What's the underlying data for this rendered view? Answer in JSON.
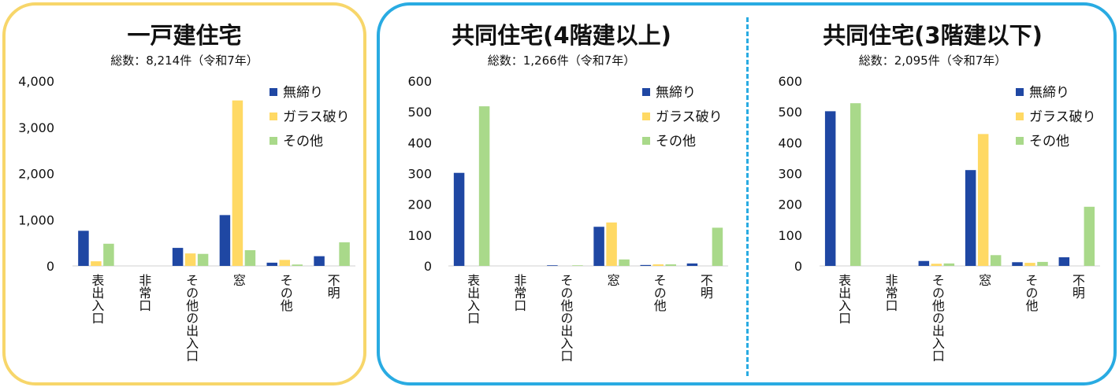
{
  "colors": {
    "no_lock": "#1f47a3",
    "glass_break": "#ffd964",
    "other": "#a9d98a",
    "panel_yellow": "#f7d66a",
    "panel_blue": "#29abe2"
  },
  "chart_data": [
    {
      "type": "bar",
      "title": "一戸建住宅",
      "subtitle": "総数：8,214件（令和7年）",
      "categories": [
        "表出入口",
        "非常口",
        "その他の出入口",
        "窓",
        "その他",
        "不明"
      ],
      "series": [
        {
          "name": "無締り",
          "values": [
            760,
            0,
            390,
            1100,
            70,
            210
          ]
        },
        {
          "name": "ガラス破り",
          "values": [
            100,
            0,
            270,
            3580,
            130,
            0
          ]
        },
        {
          "name": "その他",
          "values": [
            480,
            0,
            260,
            340,
            30,
            510
          ]
        }
      ],
      "yticks": [
        "0",
        "1,000",
        "2,000",
        "3,000",
        "4,000"
      ],
      "ylim": [
        0,
        4000
      ],
      "legend": "top-right"
    },
    {
      "type": "bar",
      "title": "共同住宅(4階建以上)",
      "subtitle": "総数：1,266件（令和7年）",
      "categories": [
        "表出入口",
        "非常口",
        "その他の出入口",
        "窓",
        "その他",
        "不明"
      ],
      "series": [
        {
          "name": "無締り",
          "values": [
            302,
            0,
            2,
            127,
            3,
            8
          ]
        },
        {
          "name": "ガラス破り",
          "values": [
            0,
            0,
            0,
            141,
            5,
            0
          ]
        },
        {
          "name": "その他",
          "values": [
            518,
            0,
            2,
            21,
            5,
            124
          ]
        }
      ],
      "yticks": [
        "0",
        "100",
        "200",
        "300",
        "400",
        "500",
        "600"
      ],
      "ylim": [
        0,
        600
      ],
      "legend": "top-right"
    },
    {
      "type": "bar",
      "title": "共同住宅(3階建以下)",
      "subtitle": "総数：2,095件（令和7年）",
      "categories": [
        "表出入口",
        "非常口",
        "その他の出入口",
        "窓",
        "その他",
        "不明"
      ],
      "series": [
        {
          "name": "無締り",
          "values": [
            502,
            0,
            16,
            311,
            12,
            28
          ]
        },
        {
          "name": "ガラス破り",
          "values": [
            0,
            0,
            7,
            428,
            10,
            0
          ]
        },
        {
          "name": "その他",
          "values": [
            528,
            0,
            8,
            35,
            13,
            192
          ]
        }
      ],
      "yticks": [
        "0",
        "100",
        "200",
        "300",
        "400",
        "500",
        "600"
      ],
      "ylim": [
        0,
        600
      ],
      "legend": "top-right"
    }
  ]
}
